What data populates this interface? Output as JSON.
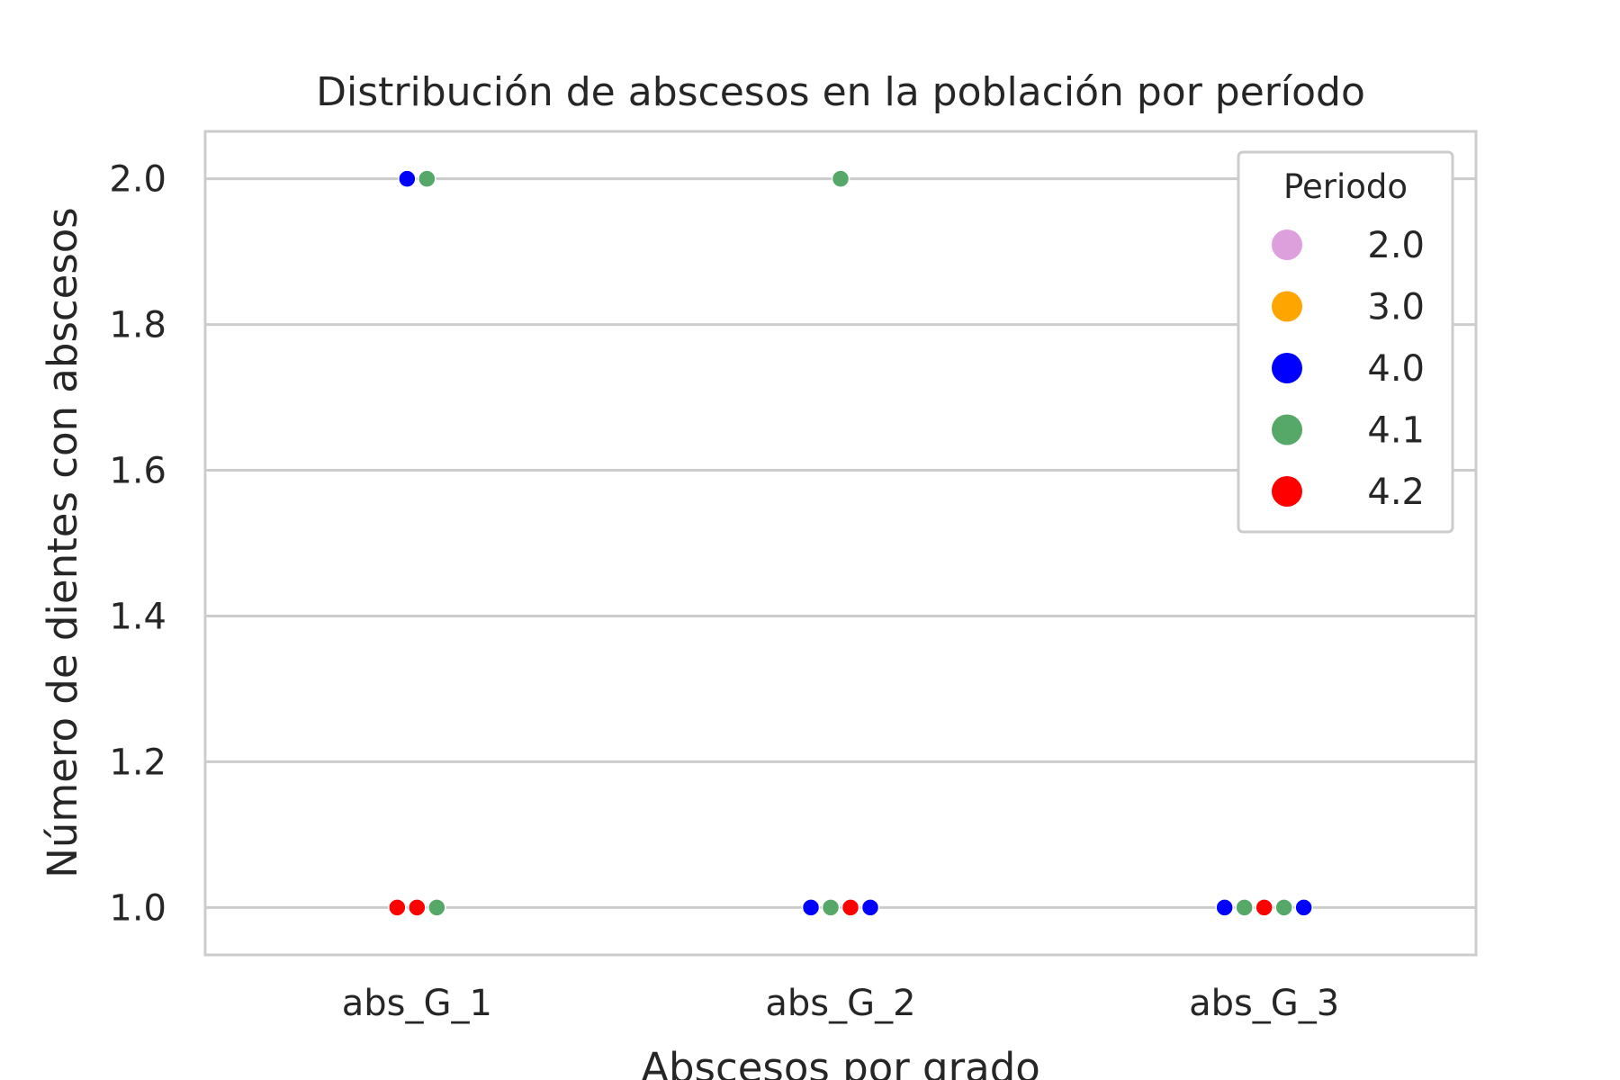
{
  "chart_data": {
    "type": "scatter",
    "subtype": "swarm",
    "title": "Distribución de abscesos en la población por período",
    "xlabel": "Abscesos por grado",
    "ylabel": "Número de dientes con abscesos",
    "categories": [
      "abs_G_1",
      "abs_G_2",
      "abs_G_3"
    ],
    "ylim": [
      0.935,
      2.065
    ],
    "yticks": [
      "1.0",
      "1.2",
      "1.4",
      "1.6",
      "1.8",
      "2.0"
    ],
    "ytick_values": [
      1.0,
      1.2,
      1.4,
      1.6,
      1.8,
      2.0
    ],
    "grid": "horizontal",
    "legend": {
      "title": "Periodo",
      "placement": "top-right",
      "entries": [
        {
          "label": "2.0",
          "color": "#dda0dd"
        },
        {
          "label": "3.0",
          "color": "#ffa500"
        },
        {
          "label": "4.0",
          "color": "#0000ff"
        },
        {
          "label": "4.1",
          "color": "#55a868"
        },
        {
          "label": "4.2",
          "color": "#ff0000"
        }
      ]
    },
    "points": [
      {
        "category": "abs_G_1",
        "y": 2.0,
        "periods": [
          "4.0",
          "4.1"
        ]
      },
      {
        "category": "abs_G_1",
        "y": 1.0,
        "periods": [
          "4.2",
          "4.2",
          "4.1"
        ]
      },
      {
        "category": "abs_G_2",
        "y": 2.0,
        "periods": [
          "4.1"
        ]
      },
      {
        "category": "abs_G_2",
        "y": 1.0,
        "periods": [
          "4.0",
          "4.1",
          "4.2",
          "4.0"
        ]
      },
      {
        "category": "abs_G_3",
        "y": 1.0,
        "periods": [
          "4.0",
          "4.1",
          "4.2",
          "4.1",
          "4.0"
        ]
      }
    ]
  }
}
